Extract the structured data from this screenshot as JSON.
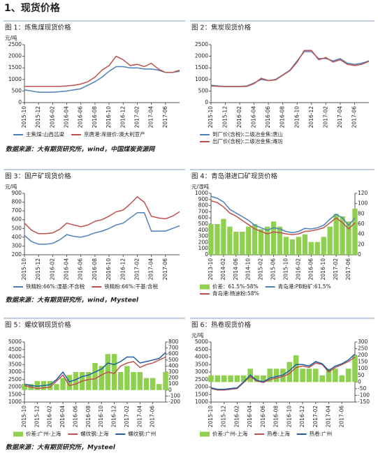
{
  "heading": "1、现货价格",
  "sources": [
    "数据来源：大有期货研究所，wind，中国煤炭资源网",
    "数据来源：大有期货研究所，wind，Mysteel",
    "数据来源：大有期货研究所，Mysteel"
  ],
  "chart_data": [
    {
      "type": "line",
      "title": "图 1：炼焦煤现货价格",
      "ylabel": "元/吨",
      "categories": [
        "2015-10",
        null,
        "2015-12",
        null,
        "2016-02",
        null,
        "2016-04",
        null,
        "2016-06",
        null,
        "2016-08",
        null,
        "2016-10",
        null,
        "2016-12",
        null,
        "2017-02",
        null,
        "2017-04",
        null,
        "2017-06",
        null,
        null
      ],
      "ylim": [
        0,
        2500
      ],
      "yticks": [
        0,
        500,
        1000,
        1500,
        2000,
        2500
      ],
      "grid": false,
      "series": [
        {
          "name": "主焦煤:山西吕梁",
          "color": "#4f81bd",
          "values": [
            550,
            500,
            450,
            450,
            450,
            470,
            500,
            550,
            600,
            750,
            900,
            1100,
            1350,
            1550,
            1550,
            1500,
            1500,
            1450,
            1450,
            1400,
            1300,
            1300,
            1350
          ]
        },
        {
          "name": "京唐港:库提价:澳大利亚产",
          "color": "#c0504d",
          "values": [
            700,
            700,
            700,
            700,
            700,
            700,
            720,
            750,
            800,
            900,
            1100,
            1400,
            1600,
            2000,
            1850,
            1600,
            1650,
            1550,
            1700,
            1450,
            1300,
            1300,
            1400
          ]
        }
      ]
    },
    {
      "type": "line",
      "title": "图 2：焦炭现货价格",
      "categories": [
        "2015-10",
        null,
        "2015-12",
        null,
        "2016-02",
        null,
        "2016-04",
        null,
        "2016-06",
        null,
        "2016-08",
        null,
        "2016-10",
        null,
        "2016-12",
        null,
        "2017-02",
        null,
        "2017-04",
        null,
        "2017-06",
        null,
        null
      ],
      "ylim": [
        0,
        2500
      ],
      "yticks": [
        0,
        500,
        1000,
        1500,
        2000,
        2500
      ],
      "grid": false,
      "series": [
        {
          "name": "到厂价(含税):二级冶金焦:唐山",
          "color": "#4f81bd",
          "values": [
            750,
            720,
            700,
            700,
            700,
            720,
            850,
            1000,
            950,
            1000,
            1200,
            1400,
            1800,
            2200,
            2200,
            1900,
            1900,
            1800,
            1900,
            1700,
            1650,
            1700,
            1800
          ]
        },
        {
          "name": "出厂价(含税):二级冶金焦:潍坊",
          "color": "#c0504d",
          "values": [
            720,
            700,
            690,
            690,
            690,
            700,
            820,
            1050,
            950,
            980,
            1180,
            1380,
            1750,
            2250,
            2250,
            1850,
            1950,
            1750,
            1850,
            1650,
            1600,
            1650,
            1780
          ]
        }
      ]
    },
    {
      "type": "line",
      "title": "图 3：国产矿现货价格",
      "ylabel": "元/吨",
      "categories": [
        "2015-10",
        null,
        "2015-12",
        null,
        "2016-02",
        null,
        "2016-04",
        null,
        "2016-06",
        null,
        "2016-08",
        null,
        "2016-10",
        null,
        "2016-12",
        null,
        "2017-02",
        null,
        "2017-04",
        null,
        "2017-06",
        null,
        null
      ],
      "ylim": [
        200,
        900
      ],
      "yticks": [
        200,
        300,
        400,
        500,
        600,
        700,
        800,
        900
      ],
      "grid": false,
      "series": [
        {
          "name": "铁精粉:66%:湿基:不含税",
          "color": "#4f81bd",
          "values": [
            420,
            350,
            320,
            320,
            330,
            370,
            430,
            410,
            400,
            420,
            450,
            470,
            500,
            540,
            560,
            620,
            680,
            680,
            470,
            470,
            470,
            500,
            530
          ]
        },
        {
          "name": "铁精粉:66%:干基:含税",
          "color": "#c0504d",
          "values": [
            560,
            480,
            440,
            440,
            450,
            490,
            560,
            540,
            520,
            540,
            580,
            600,
            640,
            690,
            710,
            780,
            860,
            800,
            640,
            620,
            610,
            640,
            690
          ]
        }
      ]
    },
    {
      "type": "combo",
      "title": "图 4：青岛港进口矿现货价格",
      "ylabel": "元/湿吨",
      "categories": [
        "2013-10",
        null,
        "2014-02",
        null,
        "2014-06",
        null,
        "2014-10",
        null,
        "2015-02",
        null,
        "2015-06",
        null,
        "2015-10",
        null,
        "2016-02",
        null,
        "2016-06",
        null,
        "2016-10",
        null,
        "2017-02",
        null,
        "2017-06",
        null
      ],
      "ylim": [
        0,
        1000
      ],
      "yticks": [
        0,
        100,
        200,
        300,
        400,
        500,
        600,
        700,
        800,
        900,
        1000
      ],
      "y2lim": [
        0,
        120
      ],
      "y2ticks": [
        0,
        20,
        40,
        60,
        80,
        100,
        120
      ],
      "grid": false,
      "series": [
        {
          "name": "价差：61.5%-58%",
          "type": "bar",
          "axis": "y2",
          "color": "#8fd14f",
          "values": [
            60,
            60,
            70,
            55,
            45,
            45,
            55,
            60,
            50,
            55,
            65,
            55,
            35,
            30,
            35,
            40,
            25,
            25,
            35,
            55,
            80,
            75,
            65,
            90
          ]
        },
        {
          "name": "青岛港:PB粉矿:61.5%",
          "color": "#4f81bd",
          "values": [
            950,
            920,
            860,
            740,
            680,
            620,
            560,
            480,
            440,
            400,
            440,
            420,
            380,
            360,
            380,
            430,
            420,
            440,
            480,
            580,
            660,
            600,
            480,
            600
          ]
        },
        {
          "name": "青岛港:杨迪粉:58%",
          "color": "#c0504d",
          "values": [
            880,
            850,
            780,
            680,
            630,
            560,
            490,
            420,
            380,
            340,
            370,
            360,
            340,
            330,
            340,
            380,
            390,
            410,
            440,
            520,
            600,
            520,
            420,
            520
          ]
        }
      ]
    },
    {
      "type": "combo",
      "title": "图 5：螺纹钢现货价格",
      "categories": [
        "2015-10",
        null,
        "2015-12",
        null,
        "2016-02",
        null,
        "2016-04",
        null,
        "2016-06",
        null,
        "2016-08",
        null,
        "2016-10",
        null,
        "2016-12",
        null,
        "2017-02",
        null,
        "2017-04",
        null,
        "2017-06",
        null,
        null
      ],
      "ylim": [
        1000,
        5000
      ],
      "yticks": [
        1000,
        1500,
        2000,
        2500,
        3000,
        3500,
        4000,
        4500,
        5000
      ],
      "y2lim": [
        -200,
        800
      ],
      "y2ticks": [
        -200,
        -100,
        0,
        100,
        200,
        300,
        400,
        500,
        600,
        700,
        800
      ],
      "grid": false,
      "series": [
        {
          "name": "价差:广州-上海",
          "type": "bar",
          "axis": "y2",
          "color": "#8fd14f",
          "values": [
            100,
            100,
            150,
            150,
            150,
            100,
            200,
            250,
            300,
            300,
            300,
            450,
            400,
            600,
            600,
            300,
            400,
            300,
            300,
            200,
            200,
            100,
            300
          ]
        },
        {
          "name": "螺纹钢:上海",
          "color": "#c0504d",
          "values": [
            2100,
            2000,
            1900,
            1950,
            2000,
            2400,
            2800,
            2100,
            2200,
            2400,
            2500,
            2550,
            2800,
            3000,
            2900,
            3400,
            3600,
            3700,
            3300,
            3500,
            3600,
            3800,
            4000
          ]
        },
        {
          "name": "螺纹钢:广州",
          "color": "#1f5fa8",
          "values": [
            2200,
            2100,
            2050,
            2100,
            2150,
            2500,
            3000,
            2350,
            2500,
            2700,
            2800,
            3000,
            3200,
            3600,
            3500,
            3700,
            4000,
            4000,
            3600,
            3700,
            3800,
            3900,
            4300
          ]
        }
      ]
    },
    {
      "type": "combo",
      "title": "图 6：热卷现货价格",
      "ylabel": "元/吨",
      "categories": [
        "2015-10",
        null,
        "2015-12",
        null,
        "2016-02",
        null,
        "2016-04",
        null,
        "2016-06",
        null,
        "2016-08",
        null,
        "2016-10",
        null,
        "2016-12",
        null,
        "2017-02",
        null,
        "2017-04",
        null,
        "2017-06",
        null,
        null
      ],
      "ylim": [
        1000,
        5000
      ],
      "yticks": [
        1000,
        1500,
        2000,
        2500,
        3000,
        3500,
        4000,
        4500,
        5000
      ],
      "y2lim": [
        -150,
        300
      ],
      "y2ticks": [
        -150,
        -100,
        -50,
        0,
        50,
        100,
        150,
        200,
        250,
        300
      ],
      "grid": false,
      "series": [
        {
          "name": "价差:广州-上海",
          "type": "bar",
          "axis": "y2",
          "color": "#8fd14f",
          "values": [
            50,
            50,
            50,
            50,
            50,
            50,
            100,
            50,
            50,
            100,
            100,
            100,
            150,
            200,
            100,
            100,
            100,
            50,
            100,
            100,
            50,
            100,
            200
          ]
        },
        {
          "name": "热卷:上海",
          "color": "#c0504d",
          "values": [
            1900,
            1800,
            1800,
            1850,
            1900,
            2300,
            2700,
            2400,
            2300,
            2500,
            2600,
            2700,
            2900,
            3300,
            3400,
            3300,
            3600,
            3500,
            3000,
            3300,
            3500,
            3700,
            4000
          ]
        },
        {
          "name": "热卷:广州",
          "color": "#1f5fa8",
          "values": [
            1950,
            1850,
            1850,
            1900,
            1950,
            2350,
            2800,
            2450,
            2350,
            2600,
            2700,
            2800,
            3100,
            3500,
            3500,
            3400,
            3700,
            3550,
            3100,
            3400,
            3550,
            3800,
            4200
          ]
        }
      ]
    }
  ]
}
